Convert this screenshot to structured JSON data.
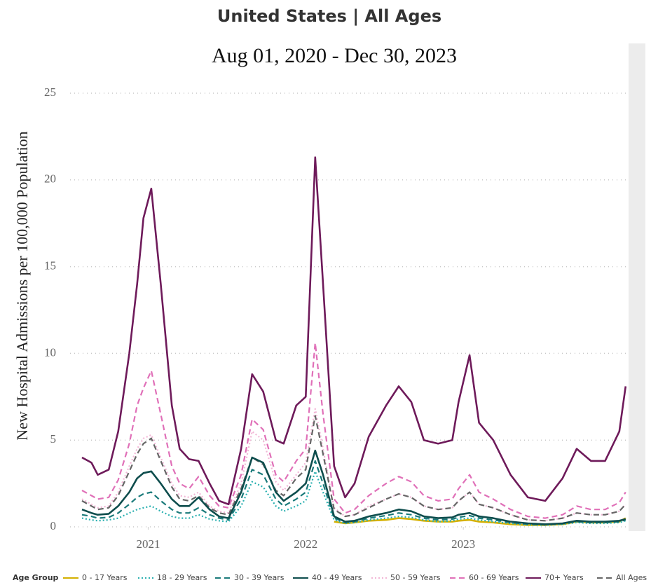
{
  "chart_data": {
    "type": "line",
    "title": "United States | All Ages",
    "subtitle": "Aug 01, 2020 - Dec 30, 2023",
    "y_label": "New Hospital Admissions per 100,000 Population",
    "legend_title": "Age Group",
    "x": [
      2020.58,
      2020.64,
      2020.68,
      2020.75,
      2020.81,
      2020.88,
      2020.93,
      2020.97,
      2021.02,
      2021.08,
      2021.15,
      2021.2,
      2021.26,
      2021.32,
      2021.39,
      2021.45,
      2021.51,
      2021.59,
      2021.66,
      2021.73,
      2021.81,
      2021.86,
      2021.94,
      2022.0,
      2022.06,
      2022.11,
      2022.18,
      2022.25,
      2022.31,
      2022.4,
      2022.51,
      2022.59,
      2022.67,
      2022.75,
      2022.84,
      2022.93,
      2022.97,
      2023.04,
      2023.1,
      2023.19,
      2023.3,
      2023.41,
      2023.52,
      2023.63,
      2023.72,
      2023.81,
      2023.9,
      2023.99,
      2024.03
    ],
    "xlim": [
      2020.58,
      2024.04
    ],
    "xticks": [
      2021,
      2022,
      2023
    ],
    "ylim": [
      0,
      25
    ],
    "yticks": [
      0,
      5,
      10,
      15,
      20,
      25
    ],
    "grid": true,
    "legend": "bottom",
    "series": [
      {
        "name": "0 - 17 Years",
        "color": "#d4b000",
        "dash": "solid",
        "values": [
          null,
          null,
          null,
          null,
          null,
          null,
          null,
          null,
          null,
          null,
          null,
          null,
          null,
          null,
          null,
          null,
          null,
          null,
          null,
          null,
          null,
          null,
          null,
          null,
          null,
          null,
          0.3,
          0.2,
          0.25,
          0.35,
          0.4,
          0.5,
          0.45,
          0.35,
          0.3,
          0.3,
          0.35,
          0.4,
          0.3,
          0.25,
          0.15,
          0.1,
          0.1,
          0.15,
          0.3,
          0.25,
          0.25,
          0.3,
          0.5
        ]
      },
      {
        "name": "18 - 29 Years",
        "color": "#2ab0b0",
        "dash": "dotted",
        "values": [
          0.5,
          0.4,
          0.35,
          0.4,
          0.5,
          0.8,
          1.0,
          1.1,
          1.2,
          0.9,
          0.6,
          0.5,
          0.5,
          0.7,
          0.45,
          0.35,
          0.3,
          1.2,
          2.6,
          2.3,
          1.2,
          0.9,
          1.2,
          1.5,
          3.2,
          2.0,
          0.4,
          0.2,
          0.25,
          0.4,
          0.5,
          0.6,
          0.55,
          0.4,
          0.3,
          0.35,
          0.45,
          0.5,
          0.4,
          0.3,
          0.2,
          0.12,
          0.1,
          0.15,
          0.25,
          0.2,
          0.2,
          0.25,
          0.35
        ]
      },
      {
        "name": "30 - 39 Years",
        "color": "#1a7a7a",
        "dash": "dashed",
        "values": [
          0.7,
          0.6,
          0.5,
          0.55,
          0.8,
          1.3,
          1.7,
          1.9,
          2.0,
          1.5,
          1.0,
          0.8,
          0.8,
          1.1,
          0.7,
          0.5,
          0.4,
          1.6,
          3.3,
          3.0,
          1.6,
          1.2,
          1.6,
          2.0,
          3.8,
          2.5,
          0.5,
          0.25,
          0.3,
          0.5,
          0.65,
          0.8,
          0.7,
          0.5,
          0.4,
          0.45,
          0.55,
          0.65,
          0.5,
          0.4,
          0.25,
          0.15,
          0.12,
          0.18,
          0.3,
          0.25,
          0.25,
          0.3,
          0.4
        ]
      },
      {
        "name": "40 - 49 Years",
        "color": "#0e4d4d",
        "dash": "solid",
        "values": [
          1.0,
          0.8,
          0.7,
          0.75,
          1.2,
          2.0,
          2.8,
          3.1,
          3.2,
          2.5,
          1.6,
          1.2,
          1.2,
          1.7,
          1.0,
          0.6,
          0.5,
          2.0,
          4.0,
          3.7,
          2.0,
          1.5,
          2.0,
          2.5,
          4.4,
          3.0,
          0.6,
          0.3,
          0.35,
          0.6,
          0.8,
          1.0,
          0.9,
          0.6,
          0.5,
          0.55,
          0.7,
          0.8,
          0.6,
          0.5,
          0.3,
          0.2,
          0.15,
          0.2,
          0.35,
          0.3,
          0.3,
          0.35,
          0.45
        ]
      },
      {
        "name": "50 - 59 Years",
        "color": "#f2b6d6",
        "dash": "dotted",
        "values": [
          1.6,
          1.3,
          1.1,
          1.2,
          2.0,
          3.5,
          4.5,
          5.1,
          5.3,
          4.0,
          2.5,
          1.8,
          1.7,
          2.0,
          1.2,
          0.9,
          0.8,
          2.5,
          5.5,
          5.0,
          2.6,
          2.1,
          3.0,
          3.7,
          6.8,
          4.5,
          1.1,
          0.6,
          0.7,
          1.2,
          1.6,
          1.9,
          1.7,
          1.2,
          1.0,
          1.1,
          1.5,
          2.0,
          1.3,
          1.1,
          0.7,
          0.4,
          0.35,
          0.5,
          0.8,
          0.7,
          0.7,
          0.9,
          1.3
        ]
      },
      {
        "name": "60 - 69 Years",
        "color": "#e070b8",
        "dash": "dashed",
        "values": [
          2.1,
          1.8,
          1.6,
          1.7,
          2.7,
          4.8,
          7.0,
          8.0,
          9.0,
          6.5,
          3.5,
          2.5,
          2.2,
          2.9,
          1.8,
          1.2,
          1.1,
          3.0,
          6.2,
          5.6,
          3.0,
          2.6,
          3.8,
          4.5,
          10.6,
          6.5,
          1.6,
          0.8,
          1.0,
          1.8,
          2.5,
          2.9,
          2.6,
          1.8,
          1.5,
          1.6,
          2.2,
          3.0,
          2.0,
          1.6,
          1.0,
          0.6,
          0.5,
          0.7,
          1.2,
          1.0,
          1.0,
          1.4,
          2.0
        ]
      },
      {
        "name": "70+ Years",
        "color": "#6e1a5a",
        "dash": "solid",
        "values": [
          4.0,
          3.7,
          3.0,
          3.3,
          5.5,
          10,
          14,
          17.8,
          19.5,
          14,
          7,
          4.5,
          3.9,
          3.8,
          2.5,
          1.5,
          1.3,
          4.5,
          8.8,
          7.8,
          5.0,
          4.8,
          7.0,
          7.5,
          21.3,
          14,
          3.5,
          1.7,
          2.5,
          5.2,
          7.0,
          8.1,
          7.2,
          5.0,
          4.8,
          5.0,
          7.2,
          9.9,
          6.0,
          5.0,
          3.0,
          1.7,
          1.5,
          2.8,
          4.5,
          3.8,
          3.8,
          5.5,
          8.1
        ]
      },
      {
        "name": "All Ages",
        "color": "#666666",
        "dash": "dashed",
        "values": [
          1.5,
          1.2,
          1.0,
          1.1,
          1.8,
          3.2,
          4.2,
          4.8,
          5.1,
          3.8,
          2.3,
          1.6,
          1.5,
          1.8,
          1.1,
          0.8,
          0.7,
          2.2,
          4.0,
          3.6,
          2.1,
          1.8,
          2.8,
          3.3,
          6.4,
          4.2,
          1.0,
          0.6,
          0.7,
          1.1,
          1.6,
          1.9,
          1.7,
          1.2,
          1.0,
          1.1,
          1.5,
          2.0,
          1.3,
          1.1,
          0.7,
          0.4,
          0.35,
          0.5,
          0.8,
          0.7,
          0.7,
          0.9,
          1.3
        ]
      }
    ]
  }
}
